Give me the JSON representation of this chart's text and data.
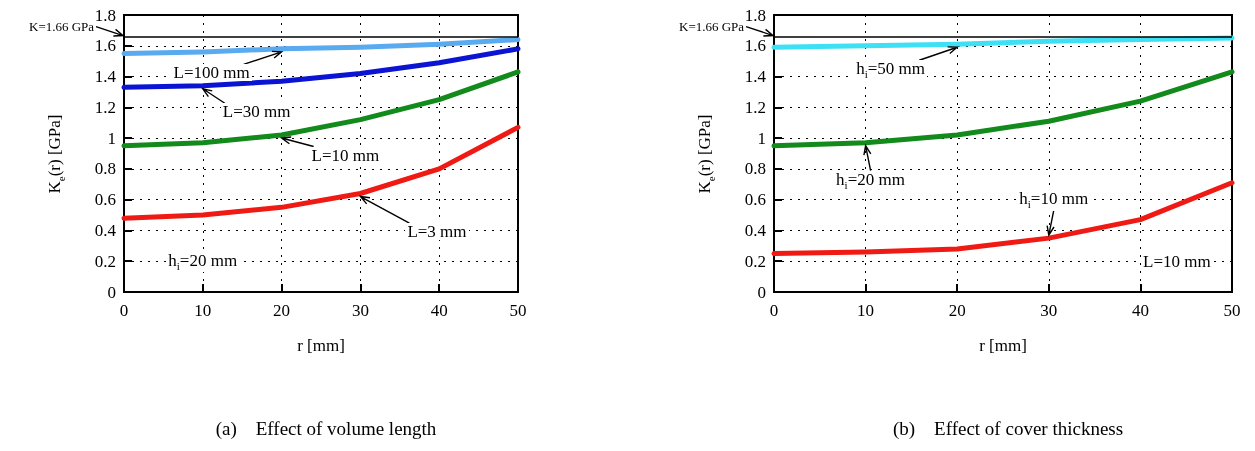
{
  "chart_data": [
    {
      "type": "line",
      "title": "(a)    Effect of volume length",
      "xlabel": "r [mm]",
      "ylabel": "K$_{e}$(r) [GPa]",
      "x": [
        0,
        10,
        20,
        30,
        40,
        50
      ],
      "series": [
        {
          "color": "#5aaaf0",
          "values": [
            1.55,
            1.56,
            1.58,
            1.59,
            1.61,
            1.64
          ]
        },
        {
          "color": "#0a14d2",
          "values": [
            1.33,
            1.34,
            1.37,
            1.42,
            1.49,
            1.58
          ]
        },
        {
          "color": "#138a1c",
          "values": [
            0.95,
            0.97,
            1.02,
            1.12,
            1.25,
            1.43
          ]
        },
        {
          "color": "#f01a14",
          "values": [
            0.48,
            0.5,
            0.55,
            0.64,
            0.8,
            1.07
          ]
        }
      ],
      "annotations": [
        "h$_{i}$=20 mm",
        {
          "text": "L=100 mm",
          "x": 20,
          "y": 1.58
        },
        {
          "text": "L=30 mm",
          "x": 10,
          "y": 1.34
        },
        {
          "text": "L=10 mm",
          "x": 20,
          "y": 1.02
        },
        {
          "text": "L=3 mm",
          "x": 30,
          "y": 0.64
        }
      ],
      "ref_lines": [
        {
          "axis": "y",
          "value": 1.66,
          "label": "K=1.66 GPa",
          "color": "#000000"
        }
      ],
      "xlim": [
        0,
        50
      ],
      "xticks": [
        0,
        10,
        20,
        30,
        40,
        50
      ],
      "ylim": [
        0,
        1.8
      ],
      "yticks": [
        0,
        0.2,
        0.4,
        0.6,
        0.8,
        1.0,
        1.2,
        1.4,
        1.6,
        1.8
      ],
      "grid": true,
      "marker": "none",
      "line_style": "solid"
    },
    {
      "type": "line",
      "title": "(b)    Effect of cover thickness",
      "xlabel": "r [mm]",
      "ylabel": "K$_{e}$(r) [GPa]",
      "x": [
        0,
        10,
        20,
        30,
        40,
        50
      ],
      "series": [
        {
          "color": "#3ee0f5",
          "values": [
            1.59,
            1.6,
            1.61,
            1.63,
            1.64,
            1.65
          ]
        },
        {
          "color": "#138a1c",
          "values": [
            0.95,
            0.97,
            1.02,
            1.11,
            1.24,
            1.43
          ]
        },
        {
          "color": "#f01a14",
          "values": [
            0.25,
            0.26,
            0.28,
            0.35,
            0.47,
            0.71
          ]
        }
      ],
      "annotations": [
        "L=10 mm",
        {
          "text": "h$_{i}$=50 mm",
          "x": 20,
          "y": 1.61
        },
        {
          "text": "h$_{i}$=20 mm",
          "x": 10,
          "y": 0.97
        },
        {
          "text": "h$_{i}$=10 mm",
          "x": 30,
          "y": 0.35
        }
      ],
      "ref_lines": [
        {
          "axis": "y",
          "value": 1.66,
          "label": "K=1.66 GPa",
          "color": "#000000"
        }
      ],
      "xlim": [
        0,
        50
      ],
      "xticks": [
        0,
        10,
        20,
        30,
        40,
        50
      ],
      "ylim": [
        0,
        1.8
      ],
      "yticks": [
        0,
        0.2,
        0.4,
        0.6,
        0.8,
        1.0,
        1.2,
        1.4,
        1.6,
        1.8
      ],
      "grid": true,
      "marker": "none",
      "line_style": "solid"
    }
  ]
}
